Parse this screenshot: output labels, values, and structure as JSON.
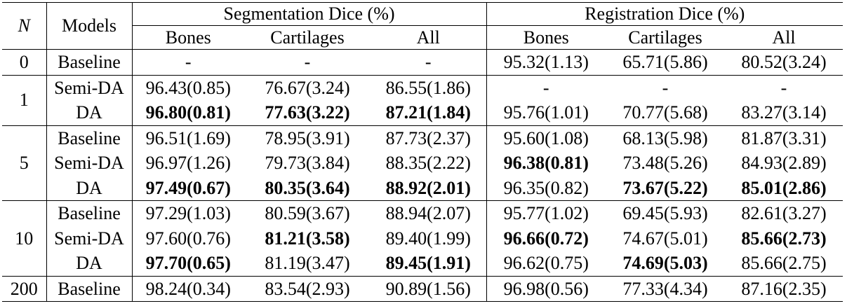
{
  "header": {
    "n": "N",
    "models": "Models",
    "groups": [
      "Segmentation Dice (%)",
      "Registration Dice (%)"
    ],
    "columns": [
      "Bones",
      "Cartilages",
      "All",
      "Bones",
      "Cartilages",
      "All"
    ]
  },
  "groups": [
    {
      "n": "0",
      "rows": [
        {
          "model": "Baseline",
          "cells": [
            "-",
            "-",
            "-",
            "95.32(1.13)",
            "65.71(5.86)",
            "80.52(3.24)"
          ]
        }
      ]
    },
    {
      "n": "1",
      "rows": [
        {
          "model": "Semi-DA",
          "cells": [
            "96.43(0.85)",
            "76.67(3.24)",
            "86.55(1.86)",
            "-",
            "-",
            "-"
          ]
        },
        {
          "model": "DA",
          "cells": [
            {
              "text": "96.80(0.81)",
              "bold": true
            },
            {
              "text": "77.63(3.22)",
              "bold": true
            },
            {
              "text": "87.21(1.84)",
              "bold": true
            },
            "95.76(1.01)",
            "70.77(5.68)",
            "83.27(3.14)"
          ]
        }
      ]
    },
    {
      "n": "5",
      "rows": [
        {
          "model": "Baseline",
          "cells": [
            "96.51(1.69)",
            "78.95(3.91)",
            "87.73(2.37)",
            "95.60(1.08)",
            "68.13(5.98)",
            "81.87(3.31)"
          ]
        },
        {
          "model": "Semi-DA",
          "cells": [
            "96.97(1.26)",
            "79.73(3.84)",
            "88.35(2.22)",
            {
              "text": "96.38(0.81)",
              "bold": true
            },
            "73.48(5.26)",
            "84.93(2.89)"
          ]
        },
        {
          "model": "DA",
          "cells": [
            {
              "text": "97.49(0.67)",
              "bold": true
            },
            {
              "text": "80.35(3.64)",
              "bold": true
            },
            {
              "text": "88.92(2.01)",
              "bold": true
            },
            "96.35(0.82)",
            {
              "text": "73.67(5.22)",
              "bold": true
            },
            {
              "text": "85.01(2.86)",
              "bold": true
            }
          ]
        }
      ]
    },
    {
      "n": "10",
      "rows": [
        {
          "model": "Baseline",
          "cells": [
            "97.29(1.03)",
            "80.59(3.67)",
            "88.94(2.07)",
            "95.77(1.02)",
            "69.45(5.93)",
            "82.61(3.27)"
          ]
        },
        {
          "model": "Semi-DA",
          "cells": [
            "97.60(0.76)",
            {
              "text": "81.21(3.58)",
              "bold": true
            },
            "89.40(1.99)",
            {
              "text": "96.66(0.72)",
              "bold": true
            },
            "74.67(5.01)",
            {
              "text": "85.66(2.73)",
              "bold": true
            }
          ]
        },
        {
          "model": "DA",
          "cells": [
            {
              "text": "97.70(0.65)",
              "bold": true
            },
            "81.19(3.47)",
            {
              "text": "89.45(1.91)",
              "bold": true
            },
            "96.62(0.75)",
            {
              "text": "74.69(5.03)",
              "bold": true
            },
            "85.66(2.75)"
          ]
        }
      ]
    },
    {
      "n": "200",
      "rows": [
        {
          "model": "Baseline",
          "cells": [
            "98.24(0.34)",
            "83.54(2.93)",
            "90.89(1.56)",
            "96.98(0.56)",
            "77.33(4.34)",
            "87.16(2.35)"
          ]
        }
      ]
    }
  ]
}
